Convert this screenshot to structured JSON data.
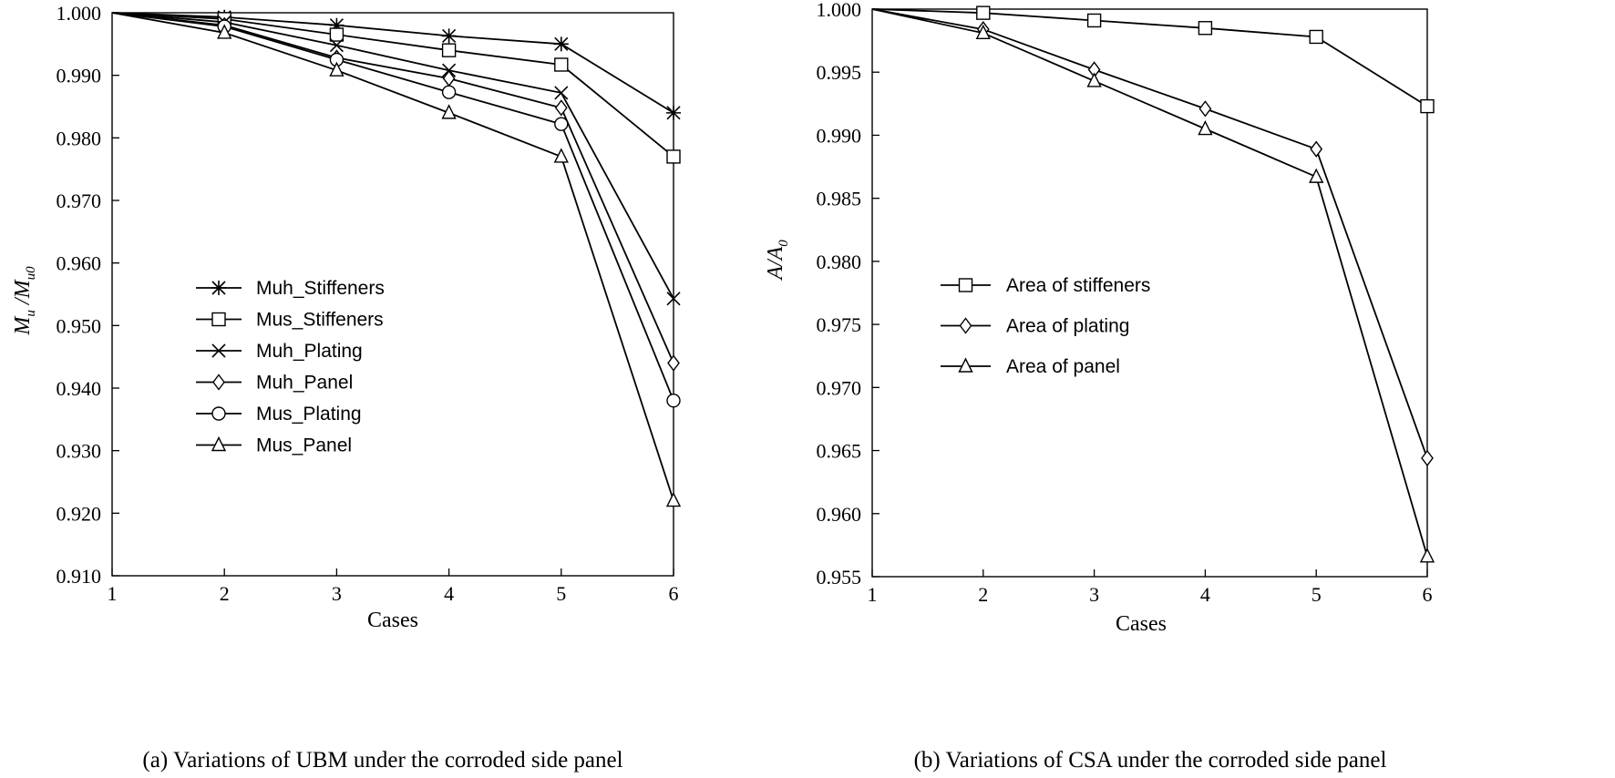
{
  "chart_data": [
    {
      "type": "line",
      "caption": "(a) Variations of UBM under the corroded side panel",
      "xlabel": "Cases",
      "ylabel_main": "M",
      "ylabel_sub1": "u",
      "ylabel_mid": " /M",
      "ylabel_sub2": "u0",
      "x": [
        1,
        2,
        3,
        4,
        5,
        6
      ],
      "xlim": [
        1,
        6
      ],
      "ylim": [
        0.91,
        1.0
      ],
      "x_ticks": [
        "1",
        "2",
        "3",
        "4",
        "5",
        "6"
      ],
      "y_ticks": [
        "0.910",
        "0.920",
        "0.930",
        "0.940",
        "0.950",
        "0.960",
        "0.970",
        "0.980",
        "0.990",
        "1.000"
      ],
      "legend_position": "center-left",
      "series": [
        {
          "name": "Muh_Stiffeners",
          "marker": "asterisk",
          "values": [
            1.0,
            0.9993,
            0.998,
            0.9963,
            0.995,
            0.984
          ]
        },
        {
          "name": "Mus_Stiffeners",
          "marker": "square",
          "values": [
            1.0,
            0.999,
            0.9965,
            0.994,
            0.9917,
            0.977
          ]
        },
        {
          "name": "Muh_Plating",
          "marker": "x",
          "values": [
            1.0,
            0.9985,
            0.9948,
            0.9908,
            0.9872,
            0.9543
          ]
        },
        {
          "name": "Muh_Panel",
          "marker": "diamond",
          "values": [
            1.0,
            0.998,
            0.9928,
            0.9895,
            0.9848,
            0.944
          ]
        },
        {
          "name": "Mus_Plating",
          "marker": "circle",
          "values": [
            1.0,
            0.9978,
            0.9925,
            0.9873,
            0.9822,
            0.938
          ]
        },
        {
          "name": "Mus_Panel",
          "marker": "triangle",
          "values": [
            1.0,
            0.9968,
            0.9908,
            0.984,
            0.977,
            0.922
          ]
        }
      ]
    },
    {
      "type": "line",
      "caption": "(b) Variations of CSA under the corroded side panel",
      "xlabel": "Cases",
      "ylabel_main": "A/A",
      "ylabel_sub1": "0",
      "x": [
        1,
        2,
        3,
        4,
        5,
        6
      ],
      "xlim": [
        1,
        6
      ],
      "ylim": [
        0.955,
        1.0
      ],
      "x_ticks": [
        "1",
        "2",
        "3",
        "4",
        "5",
        "6"
      ],
      "y_ticks": [
        "0.955",
        "0.960",
        "0.965",
        "0.970",
        "0.975",
        "0.980",
        "0.985",
        "0.990",
        "0.995",
        "1.000"
      ],
      "legend_position": "center-left",
      "series": [
        {
          "name": "Area of stiffeners",
          "marker": "square",
          "values": [
            1.0,
            0.9997,
            0.9991,
            0.9985,
            0.9978,
            0.9923
          ]
        },
        {
          "name": "Area of plating",
          "marker": "diamond",
          "values": [
            1.0,
            0.9984,
            0.9952,
            0.9921,
            0.9889,
            0.9644
          ]
        },
        {
          "name": "Area of panel",
          "marker": "triangle",
          "values": [
            1.0,
            0.9981,
            0.9943,
            0.9905,
            0.9867,
            0.9566
          ]
        }
      ]
    }
  ]
}
